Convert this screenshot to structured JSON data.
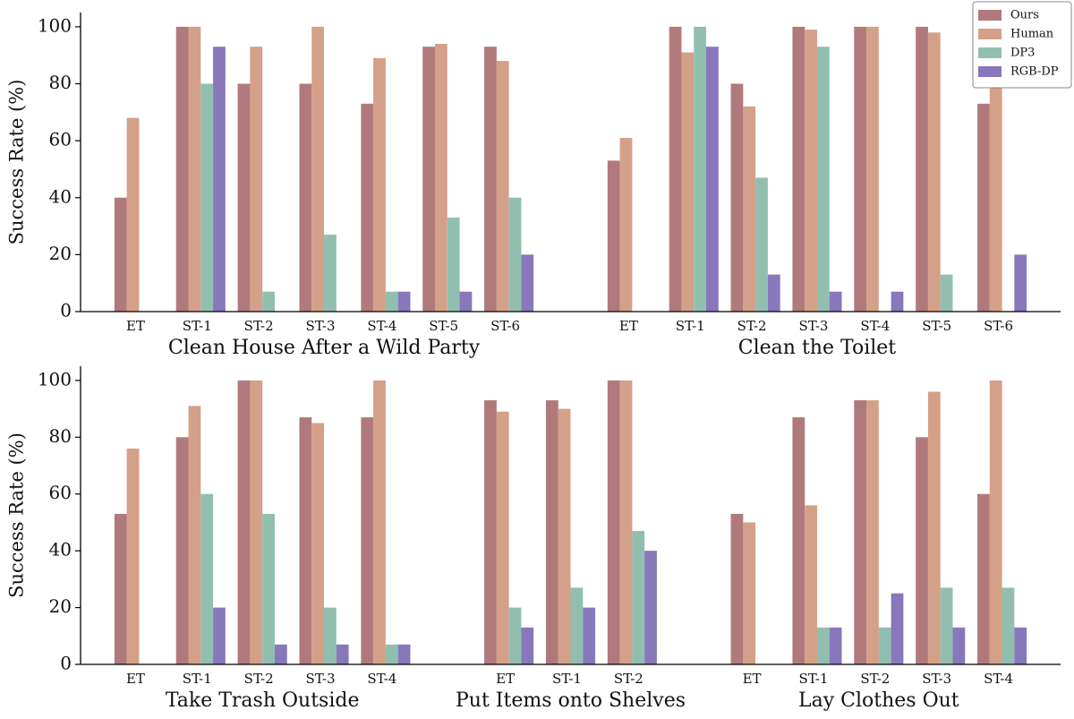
{
  "chart_data": [
    {
      "type": "bar",
      "ylabel": "Success Rate (%)",
      "ylim": [
        0,
        105
      ],
      "yticks": [
        0,
        20,
        40,
        60,
        80,
        100
      ],
      "legend": "upper right",
      "groups": [
        {
          "label": "Clean House After a Wild Party",
          "categories": [
            "ET",
            "ST-1",
            "ST-2",
            "ST-3",
            "ST-4",
            "ST-5",
            "ST-6"
          ]
        },
        {
          "label": "Clean the Toilet",
          "categories": [
            "ET",
            "ST-1",
            "ST-2",
            "ST-3",
            "ST-4",
            "ST-5",
            "ST-6"
          ]
        }
      ],
      "series": [
        {
          "name": "Ours",
          "color": "#b07a7c",
          "values": [
            40,
            100,
            80,
            80,
            73,
            93,
            93,
            53,
            100,
            80,
            100,
            100,
            100,
            73
          ]
        },
        {
          "name": "Human",
          "color": "#d4a088",
          "values": [
            68,
            100,
            93,
            100,
            89,
            94,
            88,
            61,
            91,
            72,
            99,
            100,
            98,
            98
          ]
        },
        {
          "name": "DP3",
          "color": "#90bfb0",
          "values": [
            0,
            80,
            7,
            27,
            7,
            33,
            40,
            0,
            100,
            47,
            93,
            0,
            13,
            0
          ]
        },
        {
          "name": "RGB-DP",
          "color": "#8877bb",
          "values": [
            0,
            93,
            0,
            0,
            7,
            7,
            20,
            0,
            93,
            13,
            7,
            7,
            0,
            20
          ]
        }
      ]
    },
    {
      "type": "bar",
      "ylabel": "Success Rate (%)",
      "ylim": [
        0,
        105
      ],
      "yticks": [
        0,
        20,
        40,
        60,
        80,
        100
      ],
      "groups": [
        {
          "label": "Take Trash Outside",
          "categories": [
            "ET",
            "ST-1",
            "ST-2",
            "ST-3",
            "ST-4"
          ]
        },
        {
          "label": "Put Items onto Shelves",
          "categories": [
            "ET",
            "ST-1",
            "ST-2"
          ]
        },
        {
          "label": "Lay Clothes Out",
          "categories": [
            "ET",
            "ST-1",
            "ST-2",
            "ST-3",
            "ST-4"
          ]
        }
      ],
      "series": [
        {
          "color": "#b07a7c",
          "values": [
            53,
            80,
            100,
            87,
            87,
            93,
            93,
            100,
            53,
            87,
            93,
            80,
            60
          ]
        },
        {
          "color": "#d4a088",
          "values": [
            76,
            91,
            100,
            85,
            100,
            89,
            90,
            100,
            50,
            56,
            93,
            96,
            100
          ]
        },
        {
          "color": "#90bfb0",
          "values": [
            0,
            60,
            53,
            20,
            7,
            20,
            27,
            47,
            0,
            13,
            13,
            27,
            27
          ]
        },
        {
          "color": "#8877bb",
          "values": [
            0,
            20,
            7,
            7,
            7,
            13,
            20,
            40,
            0,
            13,
            25,
            13,
            13
          ]
        }
      ]
    }
  ]
}
